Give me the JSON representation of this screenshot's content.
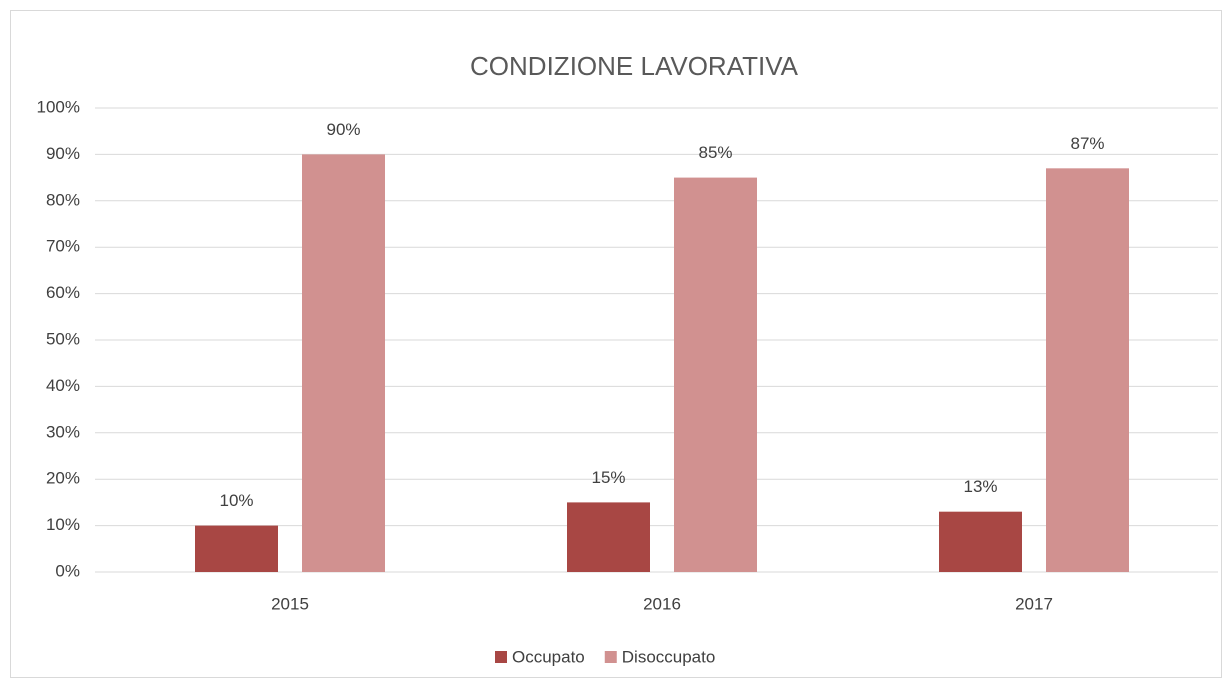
{
  "chart_data": {
    "type": "bar",
    "title": "CONDIZIONE LAVORATIVA",
    "categories": [
      "2015",
      "2016",
      "2017"
    ],
    "series": [
      {
        "name": "Occupato",
        "color": "#a84744",
        "values": [
          10,
          15,
          13
        ],
        "value_labels": [
          "10%",
          "15%",
          "13%"
        ]
      },
      {
        "name": "Disoccupato",
        "color": "#d19190",
        "values": [
          90,
          85,
          87
        ],
        "value_labels": [
          "90%",
          "85%",
          "87%"
        ]
      }
    ],
    "ylim": [
      0,
      100
    ],
    "yticks": [
      {
        "value": 0,
        "label": "0%"
      },
      {
        "value": 10,
        "label": "10%"
      },
      {
        "value": 20,
        "label": "20%"
      },
      {
        "value": 30,
        "label": "30%"
      },
      {
        "value": 40,
        "label": "40%"
      },
      {
        "value": 50,
        "label": "50%"
      },
      {
        "value": 60,
        "label": "60%"
      },
      {
        "value": 70,
        "label": "70%"
      },
      {
        "value": 80,
        "label": "80%"
      },
      {
        "value": 90,
        "label": "90%"
      },
      {
        "value": 100,
        "label": "100%"
      }
    ],
    "grid": true,
    "legend": "bottom"
  }
}
